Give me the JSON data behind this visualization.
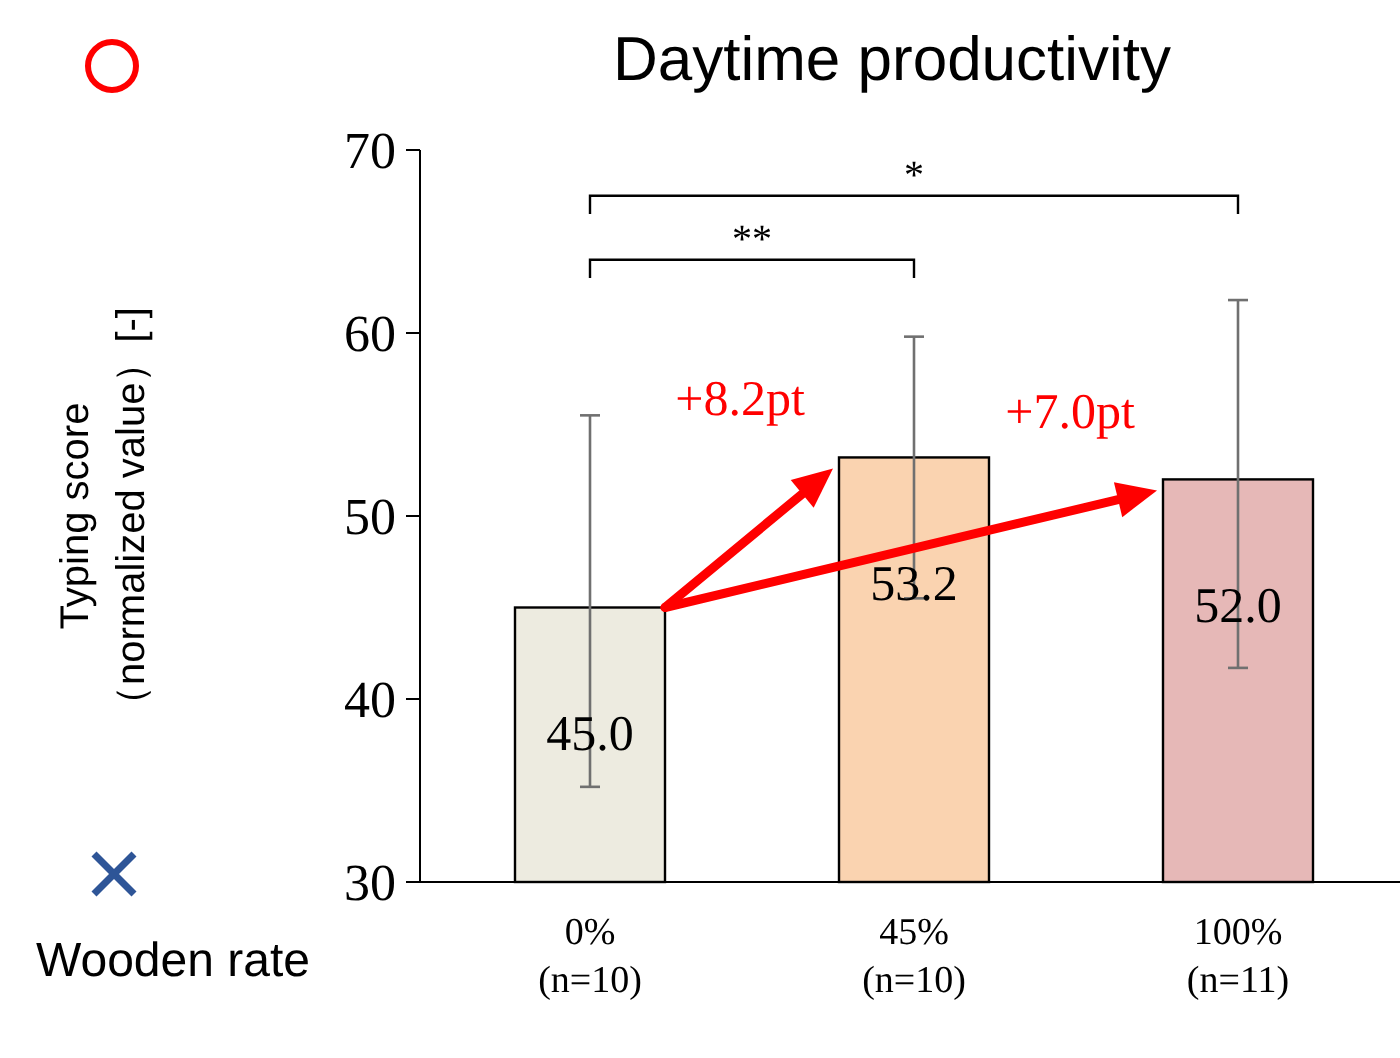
{
  "chart_data": {
    "type": "bar",
    "title": "Daytime productivity",
    "ylabel": "Typing score\n（normalized value）[-]",
    "xlabel": "Wooden rate",
    "categories": [
      "0%\n(n=10)",
      "45%\n(n=10)",
      "100%\n(n=11)"
    ],
    "values": [
      45.0,
      53.2,
      52.0
    ],
    "value_labels": [
      "45.0",
      "53.2",
      "52.0"
    ],
    "colors": [
      "#edebe0",
      "#fad3b0",
      "#e6b8b7"
    ],
    "errors": [
      [
        35.2,
        55.5
      ],
      [
        45.5,
        59.8
      ],
      [
        41.7,
        61.8
      ]
    ],
    "ylim": [
      30,
      70
    ],
    "yticks": [
      30,
      40,
      50,
      60,
      70
    ],
    "annotations": [
      "**",
      "*",
      "+8.2pt",
      "+7.0pt"
    ]
  }
}
